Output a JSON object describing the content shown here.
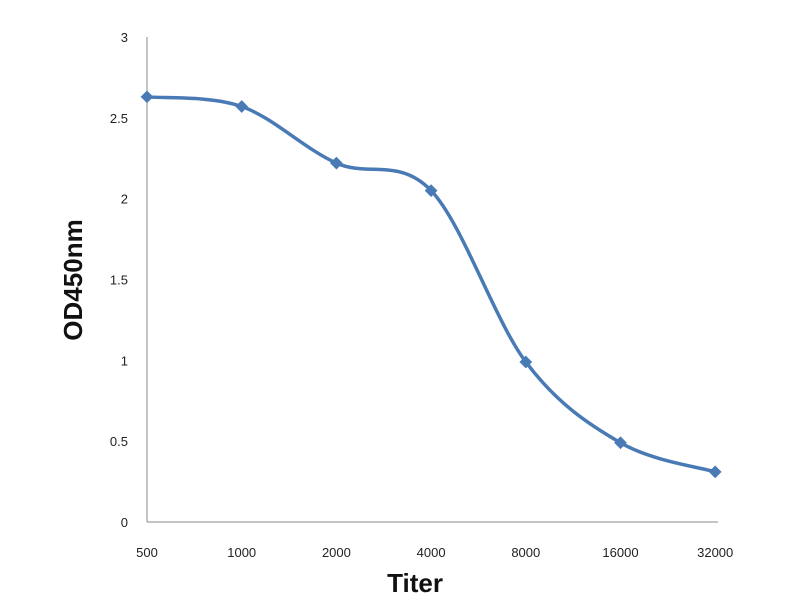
{
  "chart_data": {
    "type": "line",
    "title": "",
    "xlabel": "Titer",
    "ylabel": "OD450nm",
    "categories": [
      "500",
      "1000",
      "2000",
      "4000",
      "8000",
      "16000",
      "32000"
    ],
    "series": [
      {
        "values": [
          2.63,
          2.57,
          2.22,
          2.05,
          0.99,
          0.49,
          0.31
        ],
        "color": "#4a7ab5",
        "marker": "diamond",
        "smooth": true
      }
    ],
    "yticks": [
      "0",
      "0.5",
      "1",
      "1.5",
      "2",
      "2.5",
      "3"
    ],
    "ylim": [
      0,
      3
    ],
    "grid": false,
    "legend": "none"
  }
}
